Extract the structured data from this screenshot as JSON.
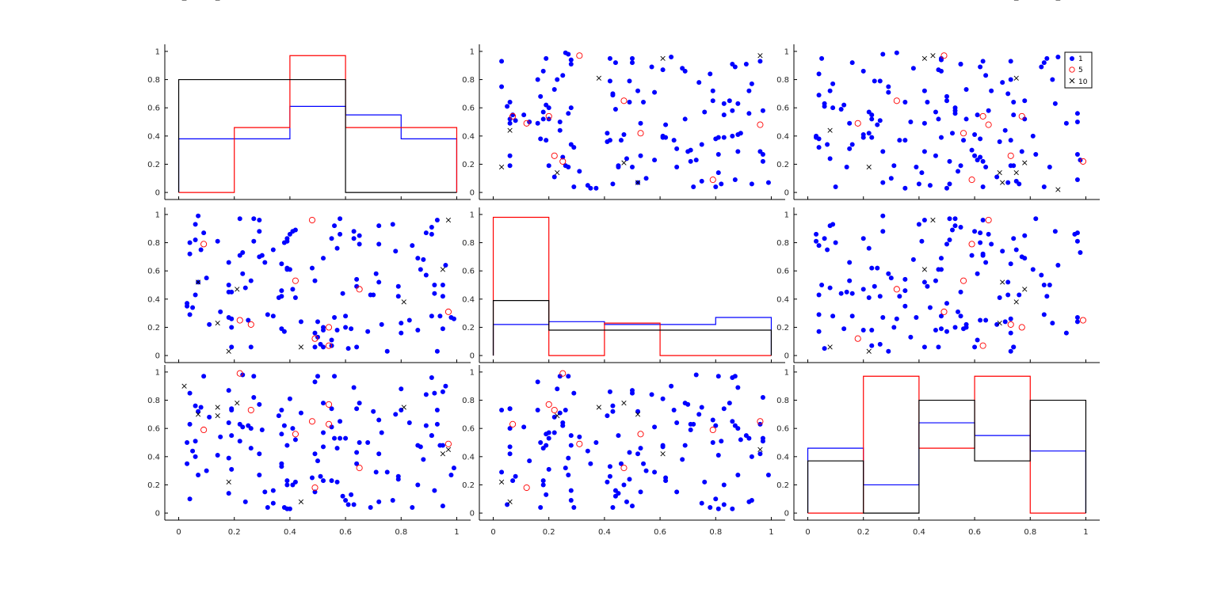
{
  "chart_data": {
    "type": "scatter",
    "description_kind": "scatter-plot-matrix",
    "grid": false,
    "axis_range": {
      "x": [
        -0.05,
        1.05
      ],
      "y": [
        -0.05,
        1.05
      ]
    },
    "x_ticks": [
      "0",
      "0.2",
      "0.4",
      "0.6",
      "0.8",
      "1"
    ],
    "y_ticks": [
      "0",
      "0.2",
      "0.4",
      "0.6",
      "0.8",
      "1"
    ],
    "legend": {
      "placement": "top-right",
      "panel": [
        0,
        2
      ],
      "entries": [
        "1",
        "5",
        "10"
      ]
    },
    "groups": [
      {
        "label": "1",
        "color": "#0000ff",
        "marker": "filled-circle"
      },
      {
        "label": "5",
        "color": "#ff0000",
        "marker": "open-circle"
      },
      {
        "label": "10",
        "color": "#000000",
        "marker": "x"
      }
    ],
    "histograms": [
      {
        "panel": [
          0,
          0
        ],
        "bin_edges": [
          0,
          0.2,
          0.4,
          0.6,
          0.8,
          1
        ],
        "series": [
          {
            "group": "1",
            "values": [
              0.38,
              0.38,
              0.61,
              0.55,
              0.38
            ]
          },
          {
            "group": "5",
            "values": [
              0.0,
              0.46,
              0.97,
              0.46,
              0.46
            ]
          },
          {
            "group": "10",
            "values": [
              0.8,
              0.8,
              0.8,
              0.0,
              0.0
            ]
          }
        ]
      },
      {
        "panel": [
          1,
          1
        ],
        "bin_edges": [
          0,
          0.2,
          0.4,
          0.6,
          0.8,
          1
        ],
        "series": [
          {
            "group": "1",
            "values": [
              0.22,
              0.24,
              0.22,
              0.22,
              0.27
            ]
          },
          {
            "group": "5",
            "values": [
              0.98,
              0.0,
              0.23,
              0.0,
              0.0
            ]
          },
          {
            "group": "10",
            "values": [
              0.39,
              0.18,
              0.18,
              0.18,
              0.18
            ]
          }
        ]
      },
      {
        "panel": [
          2,
          2
        ],
        "bin_edges": [
          0,
          0.2,
          0.4,
          0.6,
          0.8,
          1
        ],
        "series": [
          {
            "group": "1",
            "values": [
              0.46,
              0.2,
              0.64,
              0.55,
              0.44
            ]
          },
          {
            "group": "5",
            "values": [
              0.0,
              0.97,
              0.46,
              0.97,
              0.0
            ]
          },
          {
            "group": "10",
            "values": [
              0.37,
              0.0,
              0.8,
              0.37,
              0.8
            ]
          }
        ]
      }
    ],
    "variables": {
      "x1": [
        0.26,
        0.34,
        0.65,
        0.64,
        0.31,
        0.91,
        0.64,
        0.29,
        0.27,
        0.39,
        0.79,
        0.19,
        0.83,
        0.19,
        0.11,
        0.49,
        0.26,
        0.09,
        0.42,
        0.52,
        0.79,
        0.72,
        0.44,
        0.03,
        0.95,
        0.4,
        0.39,
        0.07,
        0.8,
        0.59,
        0.93,
        0.68,
        0.32,
        0.8,
        0.37,
        0.77,
        0.49,
        0.37,
        0.94,
        0.07,
        0.04,
        0.63,
        0.19,
        0.29,
        0.15,
        0.55,
        0.39,
        0.23,
        0.51,
        0.5,
        0.49,
        0.64,
        0.96,
        0.84,
        0.89,
        0.42,
        0.18,
        0.92,
        0.5,
        0.29,
        0.55,
        0.52,
        0.86,
        0.34,
        0.57,
        0.38,
        0.27,
        0.06,
        0.99,
        0.65,
        0.24,
        0.18,
        0.25,
        0.56,
        0.69,
        0.91,
        0.39,
        0.6,
        0.73,
        0.78,
        0.92,
        0.93,
        0.41,
        0.7,
        0.88,
        0.58,
        0.52,
        0.87,
        0.72,
        0.86,
        0.18,
        0.4,
        0.71,
        0.14,
        0.91,
        0.08,
        0.04,
        0.63,
        0.1,
        0.36,
        0.57,
        0.37,
        0.04,
        0.3,
        0.56,
        0.22,
        0.37,
        0.95,
        0.72,
        0.95,
        0.58,
        0.41,
        0.61,
        0.6,
        0.98,
        0.62,
        0.38,
        0.89,
        0.22,
        0.48,
        0.03,
        0.18,
        0.06,
        0.52,
        0.75,
        0.06,
        0.23,
        0.19,
        0.55,
        0.05,
        0.54,
        0.54,
        0.65,
        0.42,
        0.26,
        0.49,
        0.48,
        0.97,
        0.09,
        0.22,
        0.21,
        0.95,
        0.14,
        0.97,
        0.44,
        0.18,
        0.07,
        0.81,
        0.02,
        0.14
      ],
      "x2": [
        0.06,
        0.28,
        0.79,
        0.49,
        0.66,
        0.86,
        0.06,
        0.7,
        0.97,
        0.83,
        0.49,
        0.45,
        0.25,
        0.2,
        0.22,
        0.53,
        0.53,
        0.87,
        0.89,
        0.2,
        0.42,
        0.52,
        0.24,
        0.37,
        0.19,
        0.61,
        0.62,
        0.52,
        0.23,
        0.44,
        0.03,
        0.17,
        0.29,
        0.16,
        0.46,
        0.93,
        0.16,
        0.65,
        0.28,
        0.99,
        0.8,
        0.88,
        0.06,
        0.96,
        0.31,
        0.83,
        0.81,
        0.58,
        0.08,
        0.13,
        0.06,
        0.54,
        0.64,
        0.78,
        0.57,
        0.41,
        0.27,
        0.44,
        0.24,
        0.88,
        0.11,
        0.69,
        0.18,
        0.75,
        0.76,
        0.8,
        0.81,
        0.93,
        0.26,
        0.85,
        0.48,
        0.5,
        0.25,
        0.92,
        0.43,
        0.28,
        0.61,
        0.2,
        0.22,
        0.74,
        0.5,
        0.96,
        0.47,
        0.43,
        0.68,
        0.97,
        0.06,
        0.61,
        0.92,
        0.69,
        0.66,
        0.86,
        0.58,
        0.81,
        0.91,
        0.75,
        0.72,
        0.83,
        0.55,
        0.41,
        0.18,
        0.42,
        0.29,
        0.71,
        0.27,
        0.97,
        0.19,
        0.42,
        0.79,
        0.5,
        0.86,
        0.88,
        0.05,
        0.28,
        0.27,
        0.19,
        0.17,
        0.87,
        0.71,
        0.62,
        0.35,
        0.45,
        0.82,
        0.18,
        0.03,
        0.43,
        0.73,
        0.26,
        0.07,
        0.34,
        0.07,
        0.2,
        0.47,
        0.53,
        0.22,
        0.12,
        0.96,
        0.31,
        0.79,
        0.25,
        0.47,
        0.61,
        0.23,
        0.96,
        0.06,
        0.03,
        0.52,
        0.38
      ],
      "x3": [
        0.6,
        0.16,
        0.5,
        0.43,
        0.15,
        0.96,
        0.74,
        0.77,
        0.82,
        0.2,
        0.24,
        0.55,
        0.64,
        0.31,
        0.68,
        0.15,
        0.46,
        0.97,
        0.52,
        0.57,
        0.26,
        0.42,
        0.71,
        0.5,
        0.48,
        0.81,
        0.23,
        0.72,
        0.88,
        0.12,
        0.73,
        0.5,
        0.04,
        0.73,
        0.35,
        0.09,
        0.93,
        0.73,
        0.48,
        0.27,
        0.1,
        0.89,
        0.74,
        0.42,
        0.54,
        0.74,
        0.03,
        0.61,
        0.26,
        0.37,
        0.42,
        0.35,
        0.9,
        0.04,
        0.84,
        0.22,
        0.39,
        0.16,
        0.97,
        0.27,
        0.61,
        0.78,
        0.2,
        0.07,
        0.22,
        0.62,
        0.97,
        0.4,
        0.32,
        0.78,
        0.08,
        0.87,
        0.62,
        0.53,
        0.04,
        0.55,
        0.48,
        0.53,
        0.57,
        0.7,
        0.85,
        0.63,
        0.2,
        0.72,
        0.38,
        0.53,
        0.47,
        0.47,
        0.08,
        0.48,
        0.64,
        0.03,
        0.29,
        0.41,
        0.55,
        0.75,
        0.63,
        0.06,
        0.3,
        0.69,
        0.46,
        0.33,
        0.85,
        0.59,
        0.97,
        0.51,
        0.56,
        0.86,
        0.66,
        0.05,
        0.65,
        0.6,
        0.06,
        0.09,
        0.27,
        0.13,
        0.04,
        0.62,
        0.63,
        0.25,
        0.35,
        0.14,
        0.51,
        0.23,
        0.29,
        0.76,
        0.98,
        0.73,
        0.23,
        0.44,
        0.63,
        0.77,
        0.32,
        0.56,
        0.73,
        0.18,
        0.65,
        0.49,
        0.59,
        0.99,
        0.78,
        0.42,
        0.69,
        0.45,
        0.08,
        0.22,
        0.7,
        0.75,
        0.9,
        0.75
      ],
      "group_of_point": [
        1,
        1,
        1,
        1,
        1,
        1,
        1,
        1,
        1,
        1,
        1,
        1,
        1,
        1,
        1,
        1,
        1,
        1,
        1,
        1,
        1,
        1,
        1,
        1,
        1,
        1,
        1,
        1,
        1,
        1,
        1,
        1,
        1,
        1,
        1,
        1,
        1,
        1,
        1,
        1,
        1,
        1,
        1,
        1,
        1,
        1,
        1,
        1,
        1,
        1,
        1,
        1,
        1,
        1,
        1,
        1,
        1,
        1,
        1,
        1,
        1,
        1,
        1,
        1,
        1,
        1,
        1,
        1,
        1,
        1,
        1,
        1,
        1,
        1,
        1,
        1,
        1,
        1,
        1,
        1,
        1,
        1,
        1,
        1,
        1,
        1,
        1,
        1,
        1,
        1,
        1,
        1,
        1,
        1,
        1,
        1,
        1,
        1,
        1,
        1,
        1,
        1,
        1,
        1,
        1,
        1,
        1,
        1,
        1,
        1,
        1,
        1,
        1,
        1,
        1,
        1,
        1,
        1,
        1,
        1,
        1,
        1,
        1,
        1,
        1,
        1,
        1,
        1,
        1,
        1,
        5,
        5,
        5,
        5,
        5,
        5,
        5,
        5,
        5,
        5,
        10,
        10,
        10,
        10,
        10,
        10,
        10,
        10,
        10,
        10
      ]
    }
  }
}
